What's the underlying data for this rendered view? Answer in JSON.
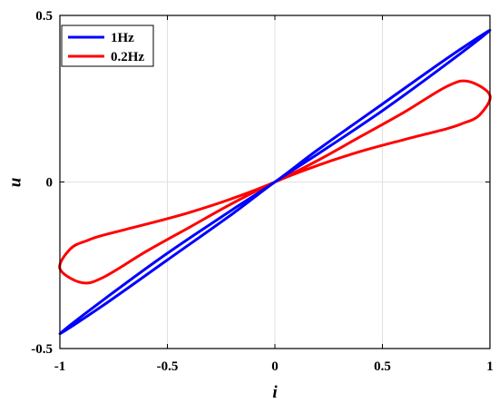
{
  "chart_data": {
    "type": "line",
    "title": "",
    "xlabel": "i",
    "ylabel": "u",
    "xlim": [
      -1,
      1
    ],
    "ylim": [
      -0.5,
      0.5
    ],
    "x_ticks": [
      "-1",
      "-0.5",
      "0",
      "0.5",
      "1"
    ],
    "y_ticks": [
      "-0.5",
      "0",
      "0.5"
    ],
    "grid": true,
    "legend_position": "top-left",
    "series": [
      {
        "name": "1Hz",
        "color": "#0000ff",
        "x": [
          0,
          0.2,
          0.5,
          0.8,
          1.0,
          0.8,
          0.5,
          0.2,
          0,
          -0.2,
          -0.5,
          -0.8,
          -1.0,
          -0.8,
          -0.5,
          -0.2,
          0
        ],
        "y": [
          0,
          0.097,
          0.234,
          0.371,
          0.455,
          0.355,
          0.214,
          0.084,
          0,
          -0.097,
          -0.234,
          -0.371,
          -0.455,
          -0.355,
          -0.214,
          -0.084,
          0
        ]
      },
      {
        "name": "0.2Hz",
        "color": "#ff0000",
        "x": [
          0,
          0.2,
          0.4,
          0.6,
          0.8,
          0.9,
          1.0,
          0.95,
          0.87,
          0.8,
          0.6,
          0.4,
          0.2,
          0,
          -0.2,
          -0.4,
          -0.6,
          -0.8,
          -0.9,
          -1.0,
          -0.95,
          -0.87,
          -0.8,
          -0.6,
          -0.4,
          -0.2,
          0
        ],
        "y": [
          0,
          0.065,
          0.137,
          0.209,
          0.287,
          0.302,
          0.26,
          0.2,
          0.175,
          0.16,
          0.127,
          0.092,
          0.05,
          0,
          -0.065,
          -0.137,
          -0.209,
          -0.287,
          -0.302,
          -0.26,
          -0.2,
          -0.175,
          -0.16,
          -0.127,
          -0.092,
          -0.05,
          0
        ]
      }
    ]
  }
}
